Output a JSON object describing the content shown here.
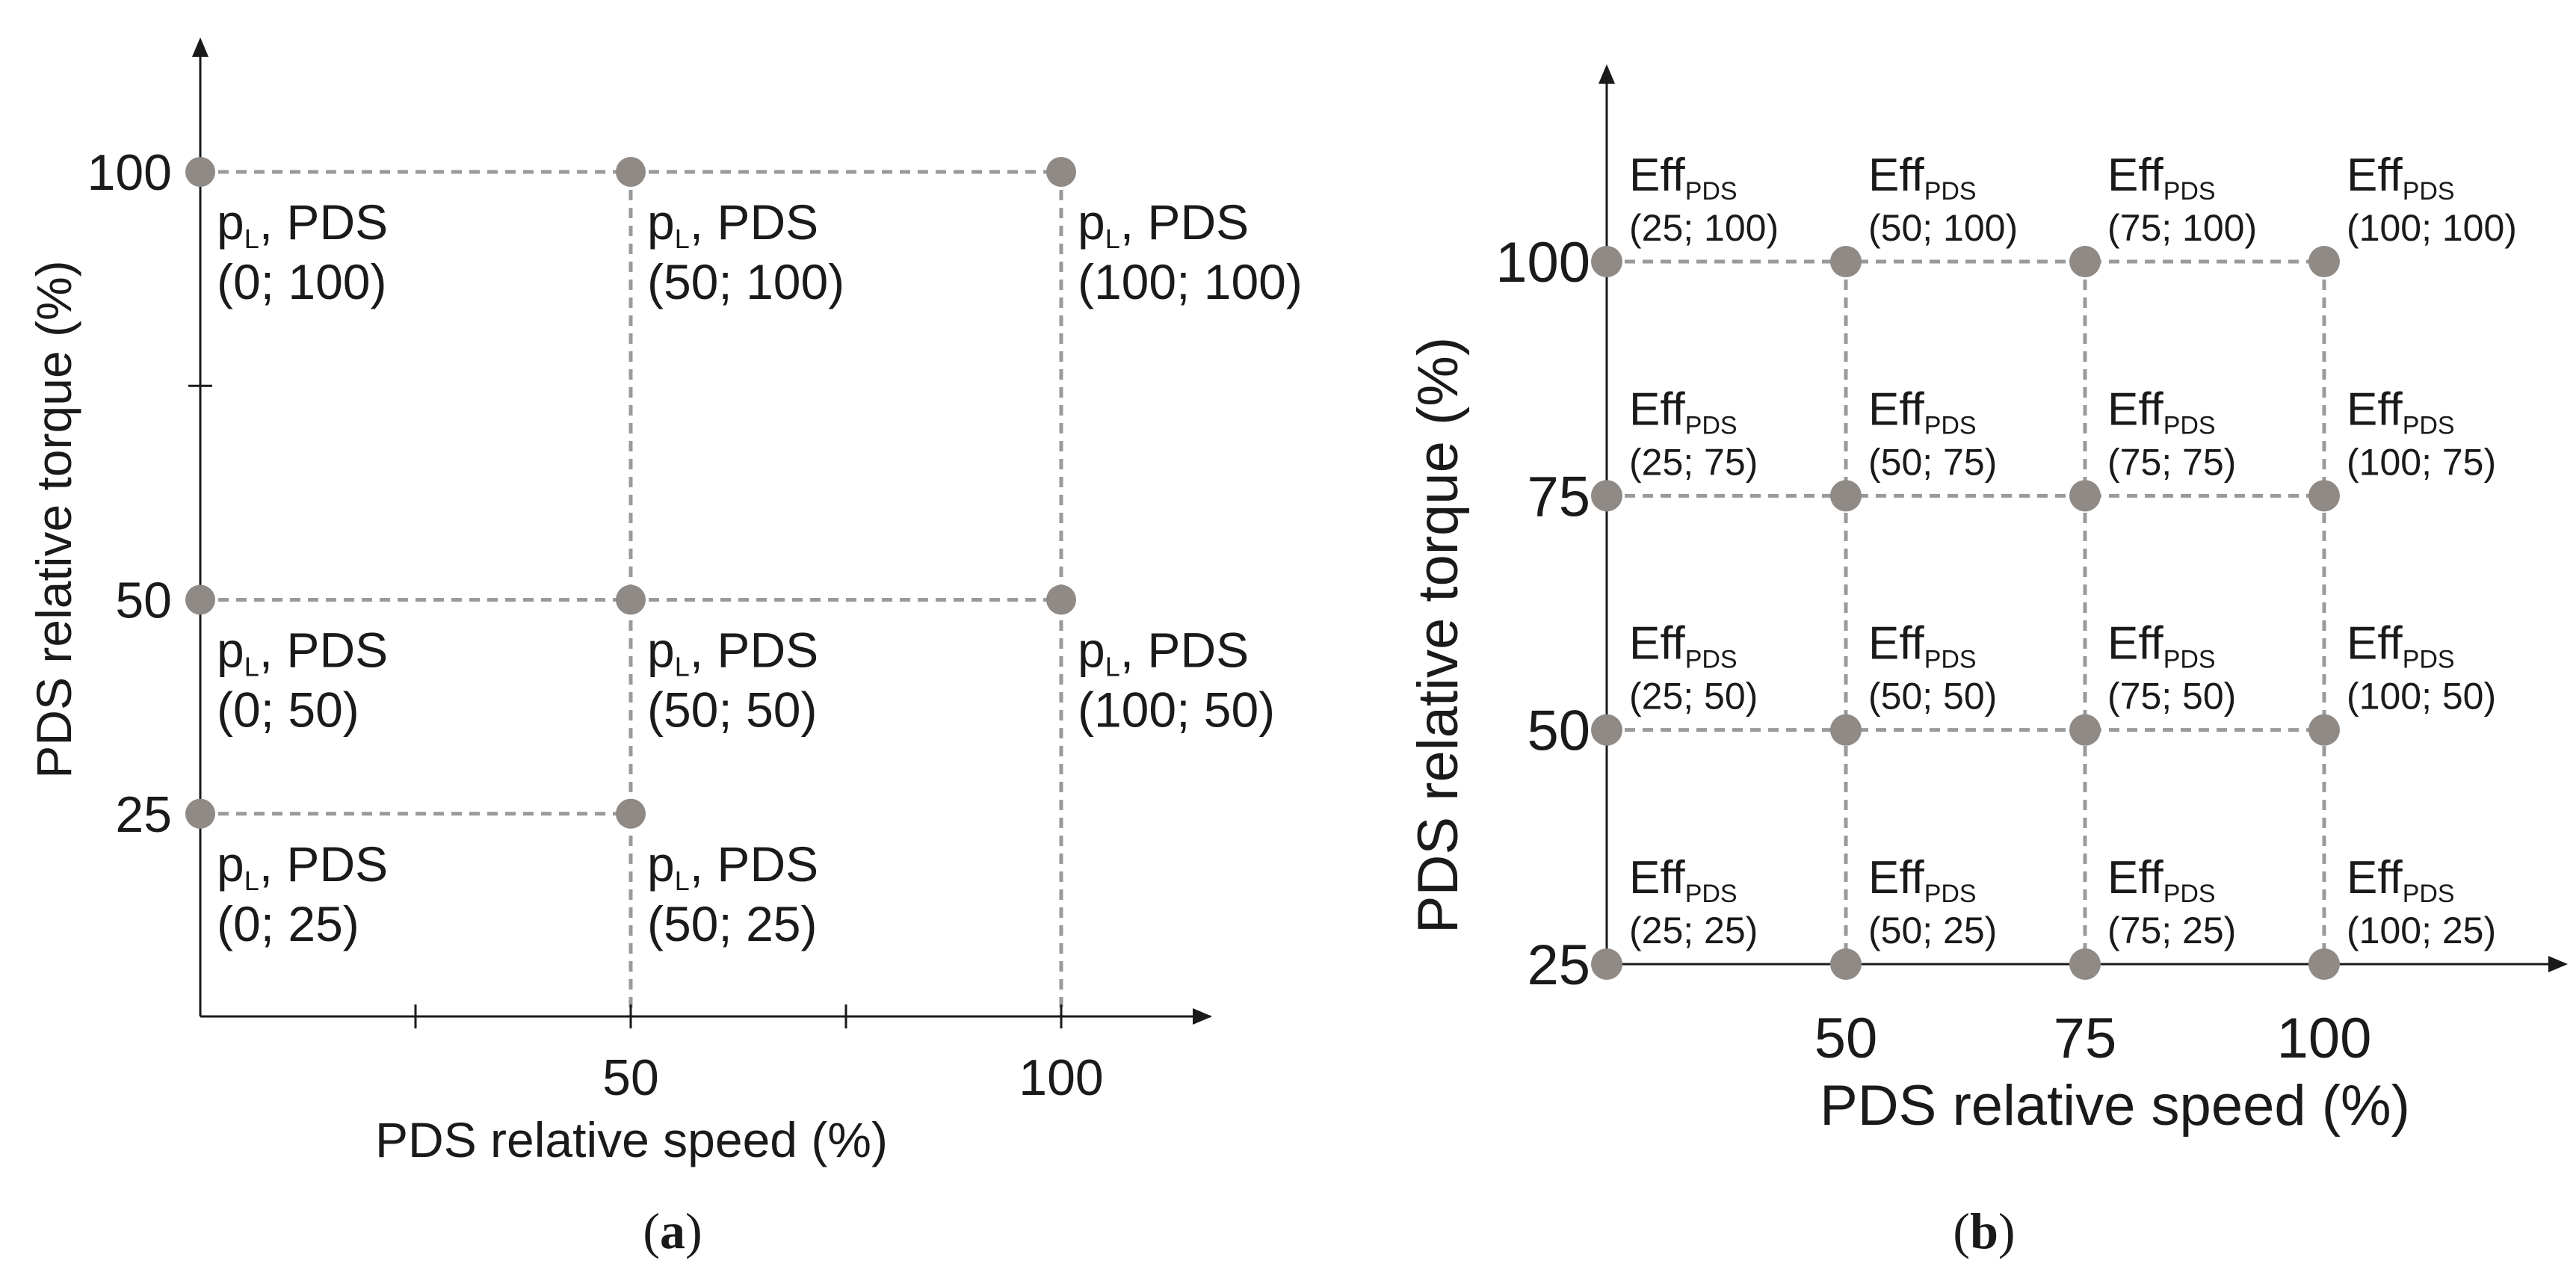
{
  "colors": {
    "axis": "#1a1a1a",
    "grid": "#9a9a9a",
    "point": "#8f8a86",
    "text": "#1a1a1a"
  },
  "panel_a": {
    "caption_letter": "a",
    "xlabel": "PDS relative speed (%)",
    "ylabel": "PDS relative torque (%)",
    "x_ticks": [
      {
        "value": 25,
        "label": ""
      },
      {
        "value": 50,
        "label": "50"
      },
      {
        "value": 75,
        "label": ""
      },
      {
        "value": 100,
        "label": "100"
      }
    ],
    "y_ticks": [
      {
        "value": 25,
        "label": "25"
      },
      {
        "value": 50,
        "label": "50"
      },
      {
        "value": 75,
        "label": ""
      },
      {
        "value": 100,
        "label": "100"
      }
    ],
    "points": [
      {
        "speed": 0,
        "torque": 100,
        "label": "pL, PDS",
        "coords": "(0; 100)"
      },
      {
        "speed": 50,
        "torque": 100,
        "label": "pL, PDS",
        "coords": "(50; 100)"
      },
      {
        "speed": 100,
        "torque": 100,
        "label": "pL, PDS",
        "coords": "(100; 100)"
      },
      {
        "speed": 0,
        "torque": 50,
        "label": "pL, PDS",
        "coords": "(0; 50)"
      },
      {
        "speed": 50,
        "torque": 50,
        "label": "pL, PDS",
        "coords": "(50; 50)"
      },
      {
        "speed": 100,
        "torque": 50,
        "label": "pL, PDS",
        "coords": "(100; 50)"
      },
      {
        "speed": 0,
        "torque": 25,
        "label": "pL, PDS",
        "coords": "(0; 25)"
      },
      {
        "speed": 50,
        "torque": 25,
        "label": "pL, PDS",
        "coords": "(50; 25)"
      }
    ]
  },
  "panel_b": {
    "caption_letter": "b",
    "xlabel": "PDS relative speed (%)",
    "ylabel": "PDS relative torque (%)",
    "x_ticks": [
      {
        "value": 50,
        "label": "50"
      },
      {
        "value": 75,
        "label": "75"
      },
      {
        "value": 100,
        "label": "100"
      }
    ],
    "y_ticks": [
      {
        "value": 25,
        "label": "25"
      },
      {
        "value": 50,
        "label": "50"
      },
      {
        "value": 75,
        "label": "75"
      },
      {
        "value": 100,
        "label": "100"
      }
    ],
    "points": [
      {
        "speed": 25,
        "torque": 100,
        "label": "EffPDS",
        "coords": "(25; 100)"
      },
      {
        "speed": 50,
        "torque": 100,
        "label": "EffPDS",
        "coords": "(50; 100)"
      },
      {
        "speed": 75,
        "torque": 100,
        "label": "EffPDS",
        "coords": "(75; 100)"
      },
      {
        "speed": 100,
        "torque": 100,
        "label": "EffPDS",
        "coords": "(100; 100)"
      },
      {
        "speed": 25,
        "torque": 75,
        "label": "EffPDS",
        "coords": "(25; 75)"
      },
      {
        "speed": 50,
        "torque": 75,
        "label": "EffPDS",
        "coords": "(50; 75)"
      },
      {
        "speed": 75,
        "torque": 75,
        "label": "EffPDS",
        "coords": "(75; 75)"
      },
      {
        "speed": 100,
        "torque": 75,
        "label": "EffPDS",
        "coords": "(100; 75)"
      },
      {
        "speed": 25,
        "torque": 50,
        "label": "EffPDS",
        "coords": "(25; 50)"
      },
      {
        "speed": 50,
        "torque": 50,
        "label": "EffPDS",
        "coords": "(50; 50)"
      },
      {
        "speed": 75,
        "torque": 50,
        "label": "EffPDS",
        "coords": "(75; 50)"
      },
      {
        "speed": 100,
        "torque": 50,
        "label": "EffPDS",
        "coords": "(100; 50)"
      },
      {
        "speed": 25,
        "torque": 25,
        "label": "EffPDS",
        "coords": "(25; 25)"
      },
      {
        "speed": 50,
        "torque": 25,
        "label": "EffPDS",
        "coords": "(50; 25)"
      },
      {
        "speed": 75,
        "torque": 25,
        "label": "EffPDS",
        "coords": "(75; 25)"
      },
      {
        "speed": 100,
        "torque": 25,
        "label": "EffPDS",
        "coords": "(100; 25)"
      }
    ]
  }
}
